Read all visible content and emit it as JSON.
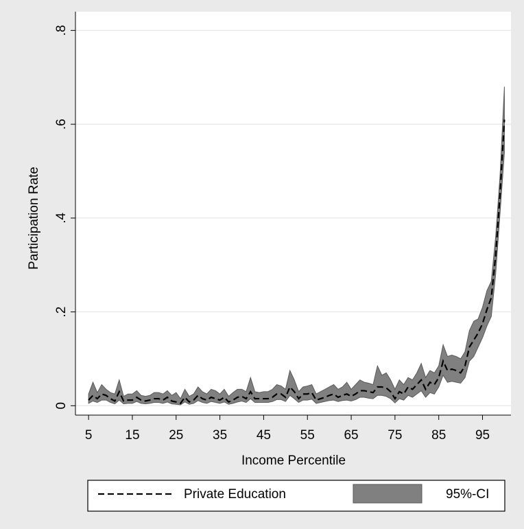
{
  "chart_data": {
    "type": "line",
    "xlabel": "Income Percentile",
    "ylabel": "Participation Rate",
    "x": [
      5,
      6,
      7,
      8,
      9,
      10,
      11,
      12,
      13,
      14,
      15,
      16,
      17,
      18,
      19,
      20,
      21,
      22,
      23,
      24,
      25,
      26,
      27,
      28,
      29,
      30,
      31,
      32,
      33,
      34,
      35,
      36,
      37,
      38,
      39,
      40,
      41,
      42,
      43,
      44,
      45,
      46,
      47,
      48,
      49,
      50,
      51,
      52,
      53,
      54,
      55,
      56,
      57,
      58,
      59,
      60,
      61,
      62,
      63,
      64,
      65,
      66,
      67,
      68,
      69,
      70,
      71,
      72,
      73,
      74,
      75,
      76,
      77,
      78,
      79,
      80,
      81,
      82,
      83,
      84,
      85,
      86,
      87,
      88,
      89,
      90,
      91,
      92,
      93,
      94,
      95,
      96,
      97,
      98,
      99,
      100
    ],
    "series": [
      {
        "name": "Private Education",
        "color": "#000000",
        "values": [
          0.012,
          0.022,
          0.015,
          0.025,
          0.022,
          0.015,
          0.01,
          0.03,
          0.01,
          0.012,
          0.012,
          0.018,
          0.012,
          0.01,
          0.012,
          0.015,
          0.015,
          0.012,
          0.018,
          0.01,
          0.008,
          0.005,
          0.018,
          0.008,
          0.012,
          0.022,
          0.015,
          0.012,
          0.018,
          0.015,
          0.012,
          0.018,
          0.008,
          0.012,
          0.018,
          0.02,
          0.015,
          0.03,
          0.015,
          0.015,
          0.015,
          0.015,
          0.018,
          0.025,
          0.025,
          0.018,
          0.04,
          0.03,
          0.015,
          0.025,
          0.025,
          0.028,
          0.012,
          0.015,
          0.018,
          0.022,
          0.025,
          0.018,
          0.022,
          0.025,
          0.02,
          0.025,
          0.032,
          0.032,
          0.03,
          0.028,
          0.04,
          0.04,
          0.038,
          0.03,
          0.015,
          0.03,
          0.025,
          0.04,
          0.035,
          0.045,
          0.055,
          0.035,
          0.05,
          0.045,
          0.06,
          0.095,
          0.075,
          0.078,
          0.075,
          0.07,
          0.085,
          0.125,
          0.14,
          0.155,
          0.175,
          0.205,
          0.23,
          0.32,
          0.45,
          0.61
        ]
      }
    ],
    "ci": {
      "name": "95%-CI",
      "color": "#808080",
      "upper": [
        0.025,
        0.05,
        0.028,
        0.045,
        0.035,
        0.028,
        0.025,
        0.055,
        0.02,
        0.025,
        0.025,
        0.032,
        0.022,
        0.02,
        0.022,
        0.028,
        0.028,
        0.025,
        0.032,
        0.022,
        0.028,
        0.015,
        0.035,
        0.02,
        0.025,
        0.04,
        0.03,
        0.025,
        0.035,
        0.032,
        0.025,
        0.035,
        0.02,
        0.028,
        0.035,
        0.035,
        0.03,
        0.06,
        0.03,
        0.028,
        0.03,
        0.03,
        0.035,
        0.045,
        0.042,
        0.035,
        0.075,
        0.055,
        0.03,
        0.04,
        0.042,
        0.045,
        0.025,
        0.03,
        0.035,
        0.04,
        0.045,
        0.035,
        0.04,
        0.05,
        0.035,
        0.045,
        0.055,
        0.05,
        0.048,
        0.045,
        0.085,
        0.065,
        0.07,
        0.055,
        0.035,
        0.055,
        0.045,
        0.06,
        0.055,
        0.07,
        0.09,
        0.06,
        0.075,
        0.07,
        0.085,
        0.13,
        0.105,
        0.108,
        0.105,
        0.1,
        0.115,
        0.16,
        0.18,
        0.185,
        0.21,
        0.245,
        0.265,
        0.36,
        0.49,
        0.68
      ],
      "lower": [
        0.005,
        0.01,
        0.007,
        0.012,
        0.012,
        0.007,
        0.004,
        0.012,
        0.004,
        0.005,
        0.005,
        0.009,
        0.005,
        0.004,
        0.005,
        0.007,
        0.007,
        0.005,
        0.008,
        0.004,
        0.003,
        0.002,
        0.008,
        0.003,
        0.005,
        0.011,
        0.007,
        0.005,
        0.009,
        0.007,
        0.005,
        0.008,
        0.003,
        0.005,
        0.008,
        0.01,
        0.007,
        0.015,
        0.007,
        0.007,
        0.007,
        0.007,
        0.009,
        0.013,
        0.013,
        0.009,
        0.022,
        0.015,
        0.007,
        0.012,
        0.012,
        0.014,
        0.005,
        0.007,
        0.009,
        0.011,
        0.012,
        0.009,
        0.011,
        0.012,
        0.01,
        0.013,
        0.018,
        0.018,
        0.016,
        0.015,
        0.022,
        0.022,
        0.02,
        0.015,
        0.006,
        0.015,
        0.012,
        0.022,
        0.018,
        0.025,
        0.032,
        0.018,
        0.028,
        0.025,
        0.04,
        0.065,
        0.05,
        0.052,
        0.05,
        0.048,
        0.06,
        0.095,
        0.105,
        0.125,
        0.145,
        0.17,
        0.19,
        0.28,
        0.41,
        0.54
      ]
    },
    "xlim": [
      2,
      101.5
    ],
    "ylim": [
      -0.02,
      0.84
    ],
    "xticks": [
      5,
      15,
      25,
      35,
      45,
      55,
      65,
      75,
      85,
      95
    ],
    "yticks": [
      0,
      {
        "value": 0.2,
        "label": ".2"
      },
      {
        "value": 0.4,
        "label": ".4"
      },
      {
        "value": 0.6,
        "label": ".6"
      },
      {
        "value": 0.8,
        "label": ".8"
      }
    ],
    "grid": true
  }
}
